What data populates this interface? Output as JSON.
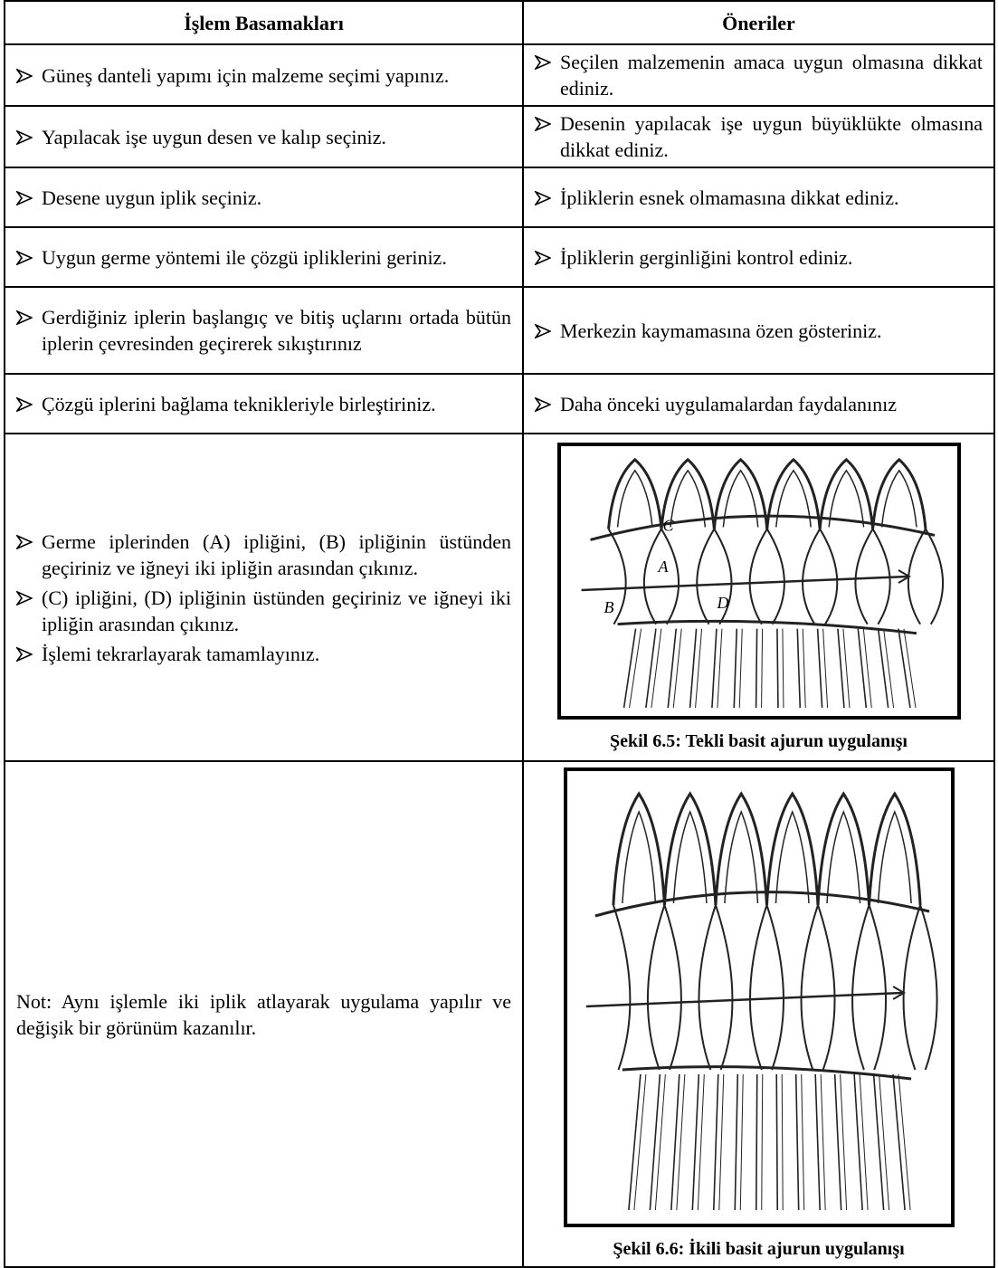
{
  "table": {
    "header": [
      "İşlem Basamakları",
      "Öneriler"
    ],
    "rows": [
      {
        "steps": [
          "Güneş danteli yapımı için malzeme seçimi yapınız."
        ],
        "tips": [
          "Seçilen malzemenin amaca uygun olmasına dikkat ediniz."
        ]
      },
      {
        "steps": [
          "Yapılacak işe uygun desen ve kalıp seçiniz."
        ],
        "tips": [
          "Desenin yapılacak işe uygun büyüklükte olmasına dikkat ediniz."
        ]
      },
      {
        "steps": [
          "Desene uygun iplik seçiniz."
        ],
        "tips": [
          "İpliklerin esnek olmamasına dikkat ediniz."
        ]
      },
      {
        "steps": [
          "Uygun germe yöntemi ile çözgü ipliklerini geriniz."
        ],
        "tips": [
          "İpliklerin gerginliğini kontrol ediniz."
        ]
      },
      {
        "steps": [
          "Gerdiğiniz iplerin başlangıç ve bitiş uçlarını ortada bütün iplerin çevresinden geçirerek sıkıştırınız"
        ],
        "tips": [
          "Merkezin kaymamasına özen gösteriniz."
        ]
      },
      {
        "steps": [
          "Çözgü iplerini bağlama teknikleriyle birleştiriniz."
        ],
        "tips": [
          "Daha önceki uygulamalardan faydalanınız"
        ]
      },
      {
        "steps": [
          "Germe iplerinden (A) ipliğini, (B) ipliğinin üstünden geçiriniz ve iğneyi iki ipliğin arasından çıkınız.",
          "(C) ipliğini, (D) ipliğinin üstünden geçiriniz ve iğneyi iki ipliğin arasından çıkınız.",
          "İşlemi tekrarlayarak tamamlayınız."
        ],
        "figure": {
          "labels": [
            "A",
            "B",
            "C",
            "D"
          ],
          "caption": "Şekil 6.5: Tekli basit ajurun uygulanışı"
        }
      },
      {
        "note": "Not: Aynı işlemle iki iplik atlayarak uygulama yapılır ve değişik bir görünüm kazanılır.",
        "figure": {
          "caption": "Şekil 6.6: İkili basit ajurun uygulanışı"
        }
      }
    ]
  }
}
